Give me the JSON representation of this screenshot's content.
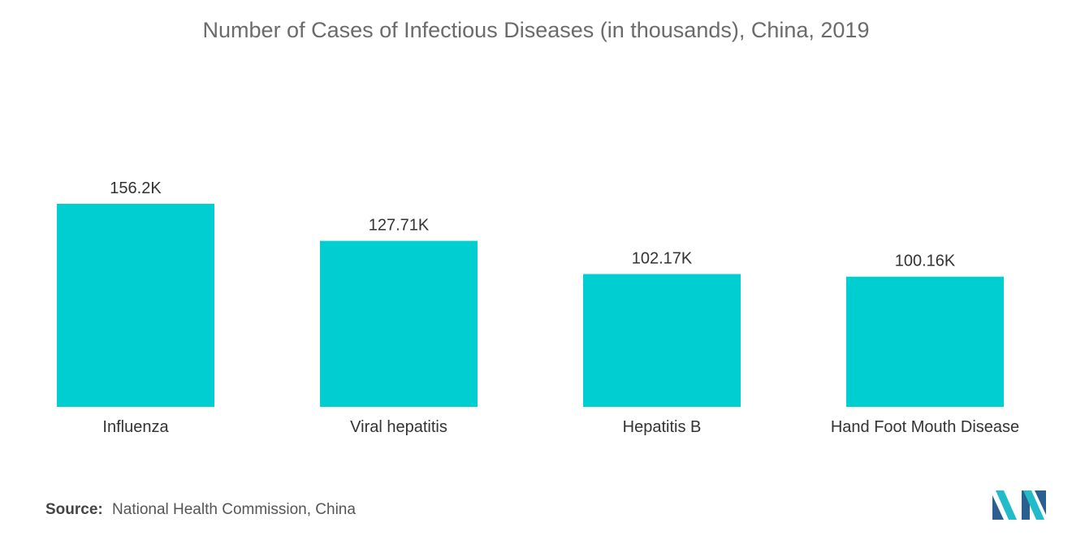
{
  "title": "Number of Cases of Infectious Diseases (in thousands), China, 2019",
  "source": {
    "label": "Source:",
    "text": "National Health Commission, China"
  },
  "colors": {
    "bar": "#00CED1",
    "logo_dark": "#2b5f8f",
    "logo_light": "#21bcc8"
  },
  "logo_icon": "mordor-intelligence-logo",
  "chart_data": {
    "type": "bar",
    "title": "Number of Cases of Infectious Diseases (in thousands), China, 2019",
    "categories": [
      "Influenza",
      "Viral hepatitis",
      "Hepatitis B",
      "Hand Foot Mouth Disease"
    ],
    "values": [
      156.2,
      127.71,
      102.17,
      100.16
    ],
    "data_labels": [
      "156.2K",
      "127.71K",
      "102.17K",
      "100.16K"
    ],
    "xlabel": "",
    "ylabel": "",
    "ylim": [
      0,
      156.2
    ],
    "grid": false,
    "legend": "none"
  }
}
